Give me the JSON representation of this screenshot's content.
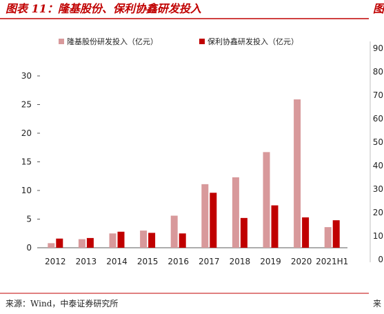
{
  "header": {
    "title": "图表 11：隆基股份、保利协鑫研发投入",
    "next_title_fragment": "图"
  },
  "footer": {
    "source": "来源：Wind，中泰证券研究所",
    "next_source_fragment": "来"
  },
  "colors": {
    "accent_red": "#c00000",
    "series_pink": "#d8999b",
    "series_red": "#c00000",
    "axis": "#595959",
    "text": "#222222"
  },
  "chart_data": [
    {
      "type": "bar",
      "title": "",
      "xlabel": "",
      "ylabel": "",
      "categories": [
        "2012",
        "2013",
        "2014",
        "2015",
        "2016",
        "2017",
        "2018",
        "2019",
        "2020",
        "2021H1"
      ],
      "series": [
        {
          "name": "隆基股份研发投入（亿元）",
          "values": [
            0.8,
            1.5,
            2.5,
            3.0,
            5.6,
            11.1,
            12.3,
            16.7,
            25.9,
            3.6
          ]
        },
        {
          "name": "保利协鑫研发投入（亿元）",
          "values": [
            1.6,
            1.7,
            2.8,
            2.6,
            2.5,
            9.6,
            5.2,
            7.4,
            5.3,
            4.8
          ]
        }
      ],
      "ylim": [
        0,
        30
      ],
      "yticks": [
        0,
        5,
        10,
        15,
        20,
        25,
        30
      ],
      "grid": false,
      "legend": "top"
    },
    {
      "type": "bar",
      "partial": true,
      "yticks": [
        0,
        10,
        20,
        30,
        40,
        50,
        60,
        70,
        80,
        90
      ],
      "ylim": [
        0,
        90
      ]
    }
  ]
}
